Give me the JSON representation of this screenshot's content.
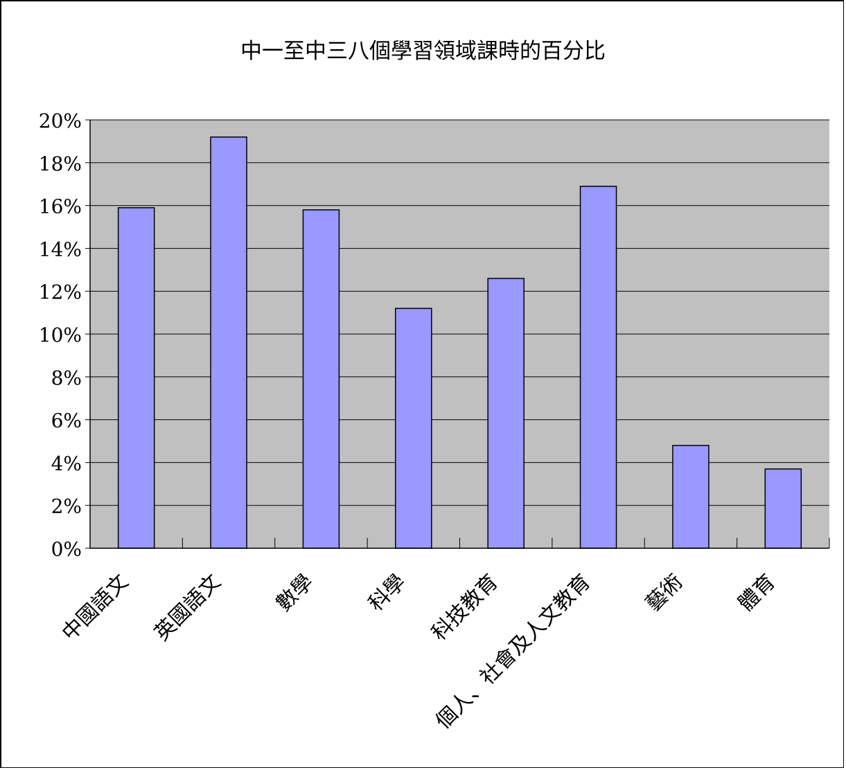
{
  "chart_data": {
    "type": "bar",
    "title": "中一至中三八個學習領域課時的百分比",
    "categories": [
      "中國語文",
      "英國語文",
      "數學",
      "科學",
      "科技教育",
      "個人、社會及人文教育",
      "藝術",
      "體育"
    ],
    "values": [
      15.9,
      19.2,
      15.8,
      11.2,
      12.6,
      16.9,
      4.8,
      3.7
    ],
    "ylim": [
      0,
      20
    ],
    "yticks": [
      "0%",
      "2%",
      "4%",
      "6%",
      "8%",
      "10%",
      "12%",
      "14%",
      "16%",
      "18%",
      "20%"
    ],
    "xlabel": "",
    "ylabel": "",
    "grid": true,
    "legend": "none",
    "colors": {
      "bar": "#9999ff",
      "plot_background": "#c0c0c0",
      "gridline": "#000000"
    }
  }
}
